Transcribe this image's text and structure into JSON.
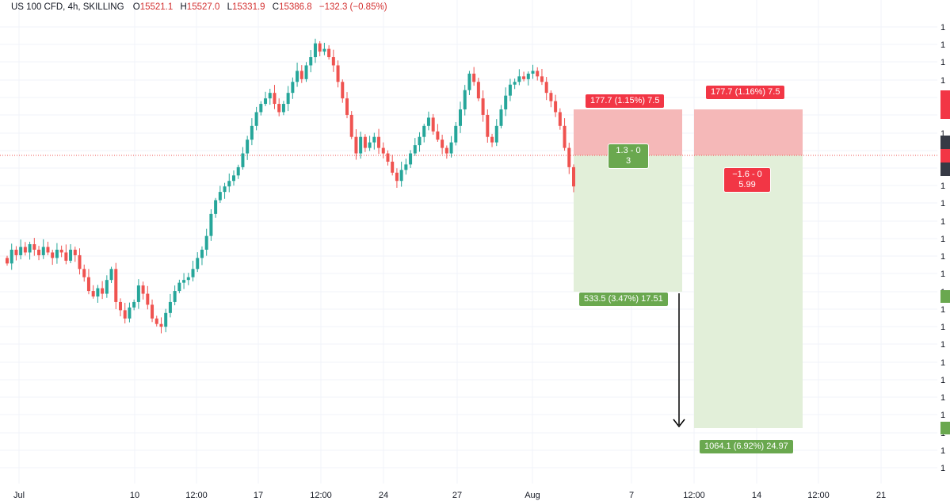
{
  "header": {
    "symbol": "US 100 CFD, 4h, SKILLING",
    "open_label": "O",
    "open": "15521.1",
    "high_label": "H",
    "high": "15527.0",
    "low_label": "L",
    "low": "15331.9",
    "close_label": "C",
    "close": "15386.8",
    "change": "−132.3 (−0.85%)"
  },
  "positions": {
    "left": {
      "stop_label": "177.7 (1.15%) 7.5",
      "mid_line1": "1.3 - 0",
      "mid_line2": "3",
      "target_label": "533.5 (3.47%) 17.51"
    },
    "right": {
      "stop_label": "177.7 (1.16%) 7.5",
      "mid_line1": "−1.6 - 0",
      "mid_line2": "5.99",
      "target_label": "1064.1 (6.92%) 24.97"
    }
  },
  "colors": {
    "up": "#26a69a",
    "down": "#ef5350",
    "stop_zone": "#f5b8b8",
    "target_zone": "#e2efd9",
    "red_tag": "#f23645",
    "green_tag": "#6aa84f"
  },
  "chart_data": {
    "type": "candlestick",
    "interval": "4h",
    "x_ticks": [
      "Jul",
      "10",
      "12:00",
      "17",
      "12:00",
      "24",
      "27",
      "Aug",
      "7",
      "12:00",
      "14",
      "12:00",
      "21"
    ],
    "ylim": [
      14300,
      16000
    ],
    "last_price": 15386.8,
    "close_series": [
      15100,
      15150,
      15130,
      15160,
      15140,
      15170,
      15150,
      15130,
      15160,
      15140,
      15120,
      15150,
      15140,
      15110,
      15150,
      15130,
      15080,
      15050,
      15000,
      14980,
      15010,
      14990,
      15040,
      15080,
      14960,
      14930,
      14900,
      14940,
      14960,
      15020,
      14990,
      14950,
      14900,
      14880,
      14870,
      14920,
      14960,
      15000,
      15030,
      15040,
      15050,
      15080,
      15120,
      15150,
      15200,
      15280,
      15330,
      15360,
      15380,
      15400,
      15420,
      15450,
      15500,
      15550,
      15600,
      15650,
      15680,
      15700,
      15720,
      15680,
      15650,
      15680,
      15720,
      15760,
      15800,
      15770,
      15820,
      15850,
      15900,
      15870,
      15880,
      15850,
      15820,
      15760,
      15700,
      15640,
      15560,
      15500,
      15560,
      15520,
      15540,
      15560,
      15520,
      15500,
      15470,
      15430,
      15400,
      15440,
      15460,
      15500,
      15530,
      15560,
      15600,
      15630,
      15580,
      15550,
      15520,
      15500,
      15540,
      15600,
      15660,
      15730,
      15790,
      15760,
      15700,
      15640,
      15560,
      15540,
      15600,
      15660,
      15710,
      15750,
      15760,
      15780,
      15770,
      15790,
      15800,
      15780,
      15760,
      15720,
      15690,
      15650,
      15600,
      15520,
      15450,
      15380
    ]
  }
}
